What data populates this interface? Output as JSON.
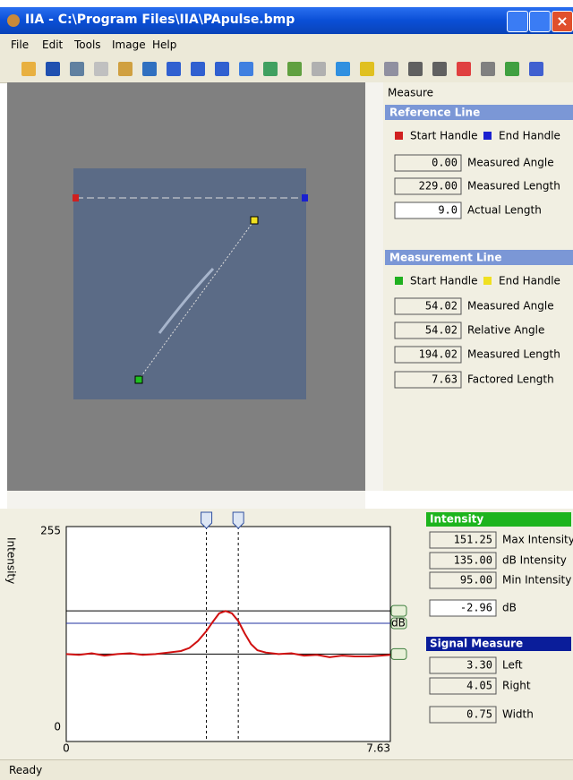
{
  "window": {
    "title": "IIA - C:\\Program Files\\IIA\\PApulse.bmp"
  },
  "menu": [
    "File",
    "Edit",
    "Tools",
    "Image",
    "Help"
  ],
  "measure_panel": {
    "title": "Measure",
    "reference_line": {
      "header": "Reference Line",
      "start_handle": "Start Handle",
      "end_handle": "End Handle",
      "fields": [
        {
          "value": "0.00",
          "label": "Measured Angle"
        },
        {
          "value": "229.00",
          "label": "Measured Length"
        },
        {
          "value": "9.0",
          "label": "Actual Length"
        }
      ]
    },
    "measurement_line": {
      "header": "Measurement Line",
      "start_handle": "Start Handle",
      "end_handle": "End Handle",
      "fields": [
        {
          "value": "54.02",
          "label": "Measured Angle"
        },
        {
          "value": "54.02",
          "label": "Relative Angle"
        },
        {
          "value": "194.02",
          "label": "Measured Length"
        },
        {
          "value": "7.63",
          "label": "Factored Length"
        }
      ]
    }
  },
  "plot": {
    "ylabel": "Intensity",
    "xlim": [
      0,
      7.63
    ],
    "xticks": [
      0,
      7.63
    ],
    "ylim": [
      0,
      255
    ],
    "yticks": [
      0,
      255
    ],
    "color": "#d01010",
    "marker_label": "dB",
    "x": [
      0,
      0.3,
      0.6,
      0.9,
      1.2,
      1.5,
      1.8,
      2.1,
      2.4,
      2.7,
      2.9,
      3.1,
      3.3,
      3.45,
      3.6,
      3.75,
      3.9,
      4.05,
      4.2,
      4.35,
      4.5,
      4.7,
      5.0,
      5.3,
      5.6,
      5.9,
      6.2,
      6.5,
      6.8,
      7.1,
      7.4,
      7.63
    ],
    "values": [
      95,
      94,
      96,
      93,
      95,
      96,
      94,
      95,
      97,
      99,
      103,
      112,
      125,
      137,
      148,
      151,
      148,
      138,
      122,
      108,
      100,
      97,
      95,
      96,
      93,
      94,
      91,
      93,
      92,
      92,
      93,
      94
    ]
  },
  "intensity": {
    "header": "Intensity",
    "fields": [
      {
        "value": "151.25",
        "label": "Max Intensity"
      },
      {
        "value": "135.00",
        "label": "dB Intensity"
      },
      {
        "value": "95.00",
        "label": "Min Intensity"
      },
      {
        "value": "-2.96",
        "label": "dB"
      }
    ]
  },
  "signal_measure": {
    "header": "Signal Measure",
    "fields": [
      {
        "value": "3.30",
        "label": "Left"
      },
      {
        "value": "4.05",
        "label": "Right"
      },
      {
        "value": "0.75",
        "label": "Width"
      }
    ]
  },
  "status": "Ready"
}
